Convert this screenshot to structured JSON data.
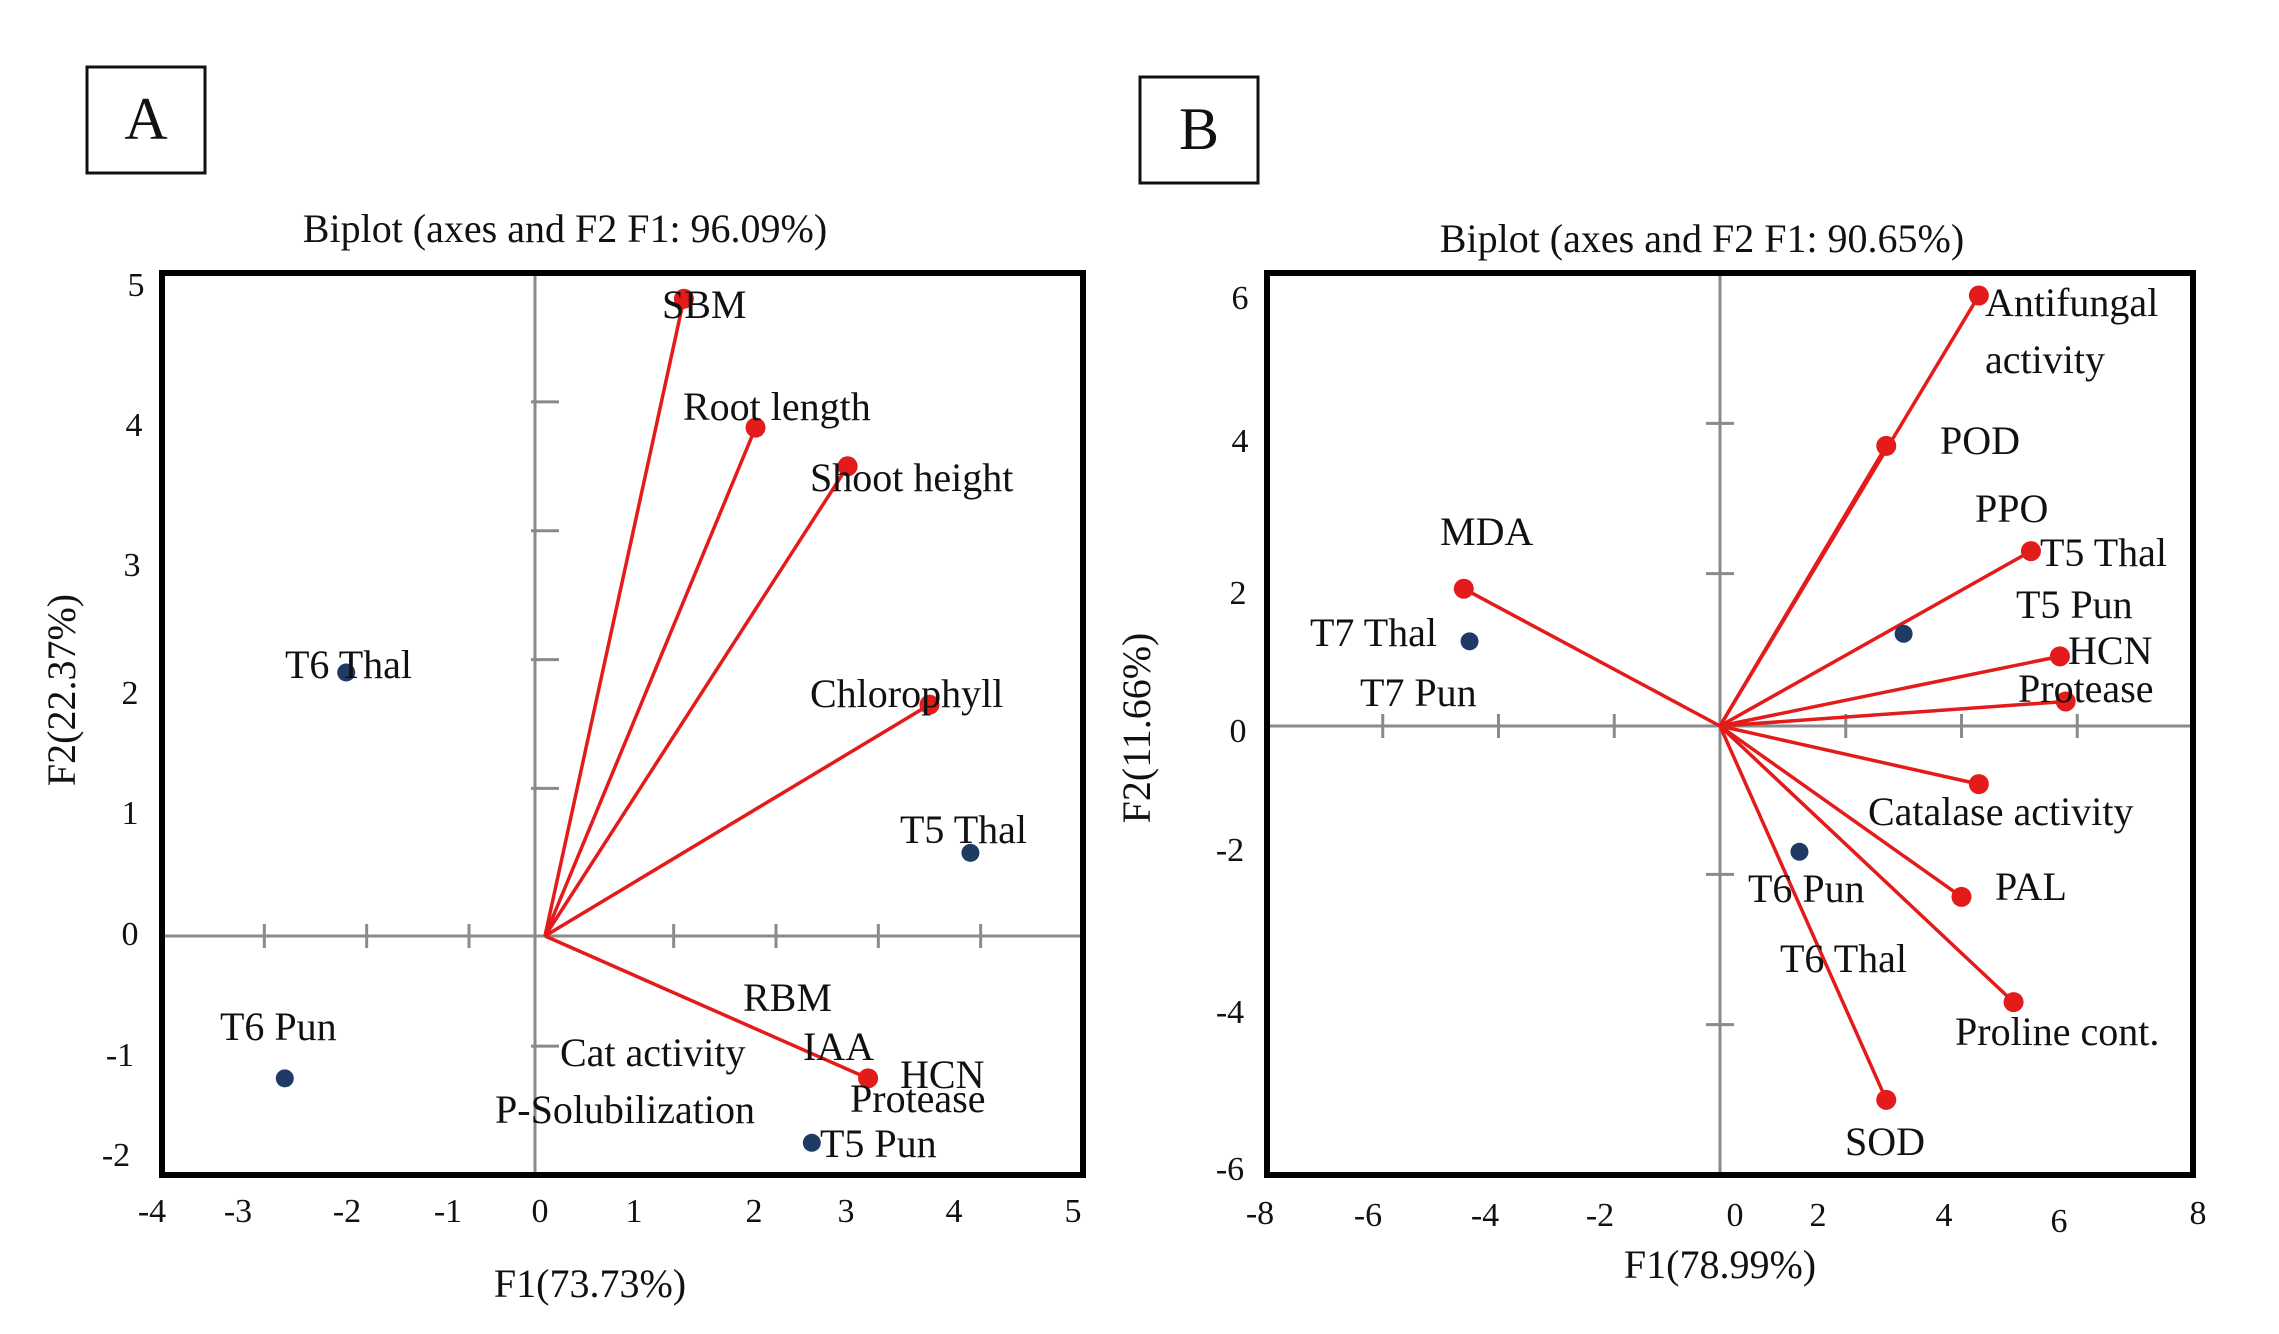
{
  "chart_data": [
    {
      "panel_label": "A",
      "type": "biplot",
      "title": "Biplot (axes and F2 F1: 96.09%)",
      "xlabel": "F1(73.73%)",
      "ylabel": "F2(22.37%)",
      "xlim": [
        -4,
        5
      ],
      "ylim": [
        -2,
        5
      ],
      "x_ticks": [
        "-4",
        "-3",
        "-2",
        "-1",
        "0",
        "1",
        "2",
        "3",
        "4",
        "5"
      ],
      "y_ticks": [
        "5",
        "4",
        "3",
        "2",
        "1",
        "0",
        "-1",
        "-2"
      ],
      "grid": false,
      "colors": {
        "vector": "#e31b1b",
        "point": "#1f3b64",
        "axis": "#8a8a8a",
        "frame": "#000000"
      },
      "variables": [
        {
          "name": "SBM",
          "x": 1.1,
          "y": 4.8
        },
        {
          "name": "Root length",
          "x": 1.8,
          "y": 3.8
        },
        {
          "name": "Shoot height",
          "x": 2.7,
          "y": 3.5
        },
        {
          "name": "Chlorophyll",
          "x": 3.5,
          "y": 1.65
        },
        {
          "name": "RBM",
          "x": 2.9,
          "y": -1.25
        }
      ],
      "variable_labels": [
        "SBM",
        "Root length",
        "Shoot height",
        "Chlorophyll",
        "RBM",
        "Cat activity",
        "IAA",
        "HCN",
        "Protease",
        "P-Solubilization"
      ],
      "observations": [
        {
          "name": "T6 Thal",
          "x": -2.2,
          "y": 1.9
        },
        {
          "name": "T5 Thal",
          "x": 3.9,
          "y": 0.5
        },
        {
          "name": "T6 Pun",
          "x": -2.8,
          "y": -1.25
        },
        {
          "name": "T5 Pun",
          "x": 2.35,
          "y": -1.75
        }
      ]
    },
    {
      "panel_label": "B",
      "type": "biplot",
      "title": "Biplot (axes and F2 F1: 90.65%)",
      "xlabel": "F1(78.99%)",
      "ylabel": "F2(11.66%)",
      "xlim": [
        -8,
        8
      ],
      "ylim": [
        -6,
        6
      ],
      "x_ticks": [
        "-8",
        "-6",
        "-4",
        "-2",
        "0",
        "2",
        "4",
        "6",
        "8"
      ],
      "y_ticks": [
        "6",
        "4",
        "2",
        "0",
        "-2",
        "-4",
        "-6"
      ],
      "grid": false,
      "colors": {
        "vector": "#e31b1b",
        "point": "#1f3b64",
        "axis": "#8a8a8a",
        "frame": "#000000"
      },
      "variables": [
        {
          "name": "Antifungal activity",
          "x": 4.3,
          "y": 5.7
        },
        {
          "name": "POD",
          "x": 2.7,
          "y": 3.7
        },
        {
          "name": "PPO",
          "x": 5.2,
          "y": 2.3
        },
        {
          "name": "HCN",
          "x": 5.7,
          "y": 0.9
        },
        {
          "name": "Protease",
          "x": 5.8,
          "y": 0.3
        },
        {
          "name": "Catalase activity",
          "x": 4.3,
          "y": -0.8
        },
        {
          "name": "PAL",
          "x": 4.0,
          "y": -2.3
        },
        {
          "name": "Proline cont.",
          "x": 4.9,
          "y": -3.7
        },
        {
          "name": "SOD",
          "x": 2.7,
          "y": -5.0
        },
        {
          "name": "MDA",
          "x": -4.6,
          "y": 1.8
        }
      ],
      "variable_labels": [
        "Antifungal",
        "activity",
        "POD",
        "PPO",
        "HCN",
        "Protease",
        "Catalase activity",
        "PAL",
        "Proline cont.",
        "SOD",
        "MDA"
      ],
      "observations": [
        {
          "name": "T7 Thal",
          "x": -4.5,
          "y": 1.1
        },
        {
          "name": "T5 Pun",
          "x": 3.0,
          "y": 1.2
        },
        {
          "name": "T6 Pun",
          "x": 1.2,
          "y": -1.7
        }
      ],
      "observation_labels": [
        "T7 Thal",
        "T7 Pun",
        "T5 Thal",
        "T5 Pun",
        "T6 Pun",
        "T6 Thal"
      ]
    }
  ]
}
